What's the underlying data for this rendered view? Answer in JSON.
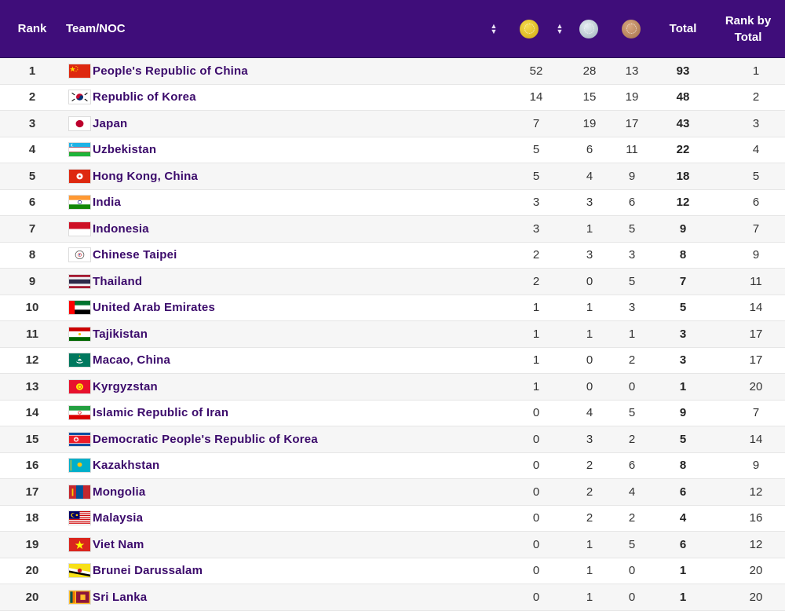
{
  "header": {
    "rank": "Rank",
    "team": "Team/NOC",
    "total": "Total",
    "rank_by_total": "Rank by Total",
    "sort_icon": "sort-icon",
    "medal_colors": {
      "gold": "#e0bf2a",
      "silver": "#c5d3da",
      "bronze": "#c08a62"
    }
  },
  "colors": {
    "header_bg": "#3f0d7a",
    "team_text": "#3b0a6b"
  },
  "rows": [
    {
      "rank": "1",
      "flag": "china",
      "team": "People's Republic of China",
      "gold": "52",
      "silver": "28",
      "bronze": "13",
      "total": "93",
      "rank_by_total": "1"
    },
    {
      "rank": "2",
      "flag": "korea",
      "team": "Republic of Korea",
      "gold": "14",
      "silver": "15",
      "bronze": "19",
      "total": "48",
      "rank_by_total": "2"
    },
    {
      "rank": "3",
      "flag": "japan",
      "team": "Japan",
      "gold": "7",
      "silver": "19",
      "bronze": "17",
      "total": "43",
      "rank_by_total": "3"
    },
    {
      "rank": "4",
      "flag": "uzbekistan",
      "team": "Uzbekistan",
      "gold": "5",
      "silver": "6",
      "bronze": "11",
      "total": "22",
      "rank_by_total": "4"
    },
    {
      "rank": "5",
      "flag": "hongkong",
      "team": "Hong Kong, China",
      "gold": "5",
      "silver": "4",
      "bronze": "9",
      "total": "18",
      "rank_by_total": "5"
    },
    {
      "rank": "6",
      "flag": "india",
      "team": "India",
      "gold": "3",
      "silver": "3",
      "bronze": "6",
      "total": "12",
      "rank_by_total": "6"
    },
    {
      "rank": "7",
      "flag": "indonesia",
      "team": "Indonesia",
      "gold": "3",
      "silver": "1",
      "bronze": "5",
      "total": "9",
      "rank_by_total": "7"
    },
    {
      "rank": "8",
      "flag": "taipei",
      "team": "Chinese Taipei",
      "gold": "2",
      "silver": "3",
      "bronze": "3",
      "total": "8",
      "rank_by_total": "9"
    },
    {
      "rank": "9",
      "flag": "thailand",
      "team": "Thailand",
      "gold": "2",
      "silver": "0",
      "bronze": "5",
      "total": "7",
      "rank_by_total": "11"
    },
    {
      "rank": "10",
      "flag": "uae",
      "team": "United Arab Emirates",
      "gold": "1",
      "silver": "1",
      "bronze": "3",
      "total": "5",
      "rank_by_total": "14"
    },
    {
      "rank": "11",
      "flag": "tajikistan",
      "team": "Tajikistan",
      "gold": "1",
      "silver": "1",
      "bronze": "1",
      "total": "3",
      "rank_by_total": "17"
    },
    {
      "rank": "12",
      "flag": "macao",
      "team": "Macao, China",
      "gold": "1",
      "silver": "0",
      "bronze": "2",
      "total": "3",
      "rank_by_total": "17"
    },
    {
      "rank": "13",
      "flag": "kyrgyzstan",
      "team": "Kyrgyzstan",
      "gold": "1",
      "silver": "0",
      "bronze": "0",
      "total": "1",
      "rank_by_total": "20"
    },
    {
      "rank": "14",
      "flag": "iran",
      "team": "Islamic Republic of Iran",
      "gold": "0",
      "silver": "4",
      "bronze": "5",
      "total": "9",
      "rank_by_total": "7"
    },
    {
      "rank": "15",
      "flag": "dprk",
      "team": "Democratic People's Republic of Korea",
      "gold": "0",
      "silver": "3",
      "bronze": "2",
      "total": "5",
      "rank_by_total": "14"
    },
    {
      "rank": "16",
      "flag": "kazakhstan",
      "team": "Kazakhstan",
      "gold": "0",
      "silver": "2",
      "bronze": "6",
      "total": "8",
      "rank_by_total": "9"
    },
    {
      "rank": "17",
      "flag": "mongolia",
      "team": "Mongolia",
      "gold": "0",
      "silver": "2",
      "bronze": "4",
      "total": "6",
      "rank_by_total": "12"
    },
    {
      "rank": "18",
      "flag": "malaysia",
      "team": "Malaysia",
      "gold": "0",
      "silver": "2",
      "bronze": "2",
      "total": "4",
      "rank_by_total": "16"
    },
    {
      "rank": "19",
      "flag": "vietnam",
      "team": "Viet Nam",
      "gold": "0",
      "silver": "1",
      "bronze": "5",
      "total": "6",
      "rank_by_total": "12"
    },
    {
      "rank": "20",
      "flag": "brunei",
      "team": "Brunei Darussalam",
      "gold": "0",
      "silver": "1",
      "bronze": "0",
      "total": "1",
      "rank_by_total": "20"
    },
    {
      "rank": "20",
      "flag": "srilanka",
      "team": "Sri Lanka",
      "gold": "0",
      "silver": "1",
      "bronze": "0",
      "total": "1",
      "rank_by_total": "20"
    }
  ]
}
